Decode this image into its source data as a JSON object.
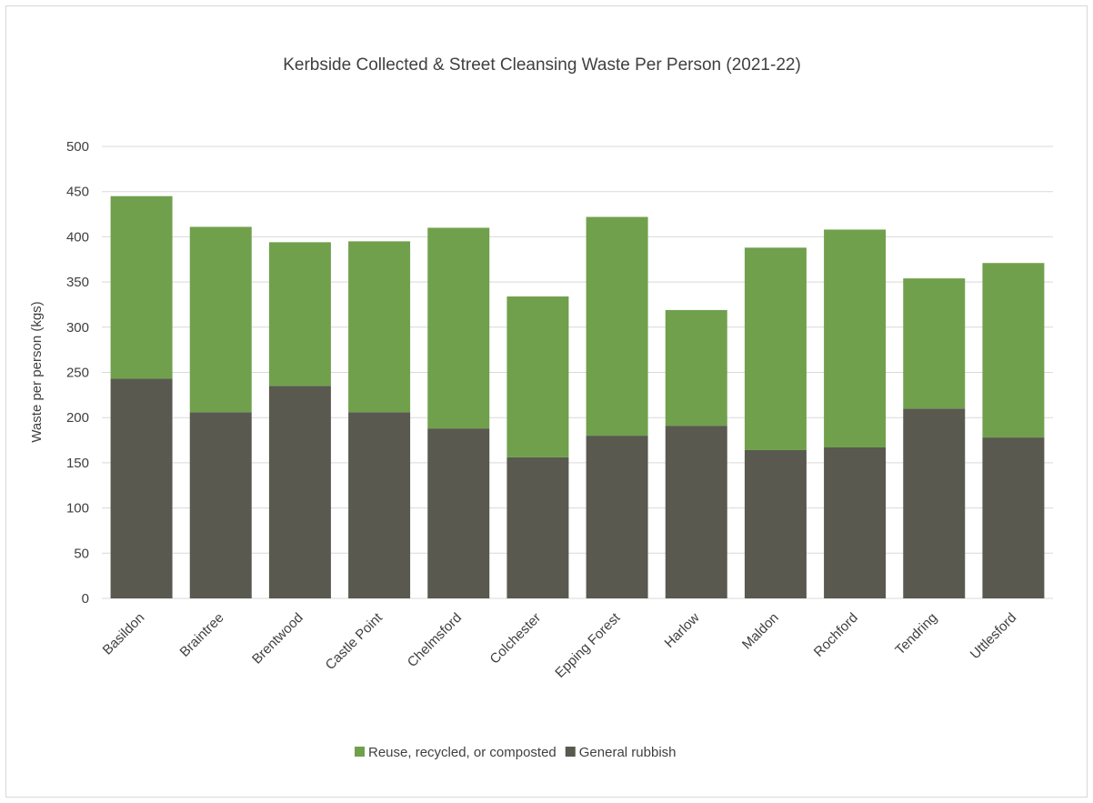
{
  "chart_data": {
    "type": "bar",
    "stacked": true,
    "title": "Kerbside Collected & Street Cleansing Waste Per Person (2021-22)",
    "xlabel": "",
    "ylabel": "Waste per person (kgs)",
    "ylim": [
      0,
      500
    ],
    "yticks": [
      0,
      50,
      100,
      150,
      200,
      250,
      300,
      350,
      400,
      450,
      500
    ],
    "grid": true,
    "legend_position": "bottom",
    "categories": [
      "Basildon",
      "Braintree",
      "Brentwood",
      "Castle Point",
      "Chelmsford",
      "Colchester",
      "Epping Forest",
      "Harlow",
      "Maldon",
      "Rochford",
      "Tendring",
      "Uttlesford"
    ],
    "series": [
      {
        "name": "General rubbish",
        "color": "#595950",
        "values": [
          243,
          206,
          235,
          206,
          188,
          156,
          180,
          191,
          164,
          167,
          210,
          178
        ]
      },
      {
        "name": "Reuse, recycled, or composted",
        "color": "#70a04c",
        "values": [
          202,
          205,
          159,
          189,
          222,
          178,
          242,
          128,
          224,
          241,
          144,
          193
        ]
      }
    ],
    "legend_order": [
      "Reuse, recycled, or composted",
      "General rubbish"
    ]
  }
}
